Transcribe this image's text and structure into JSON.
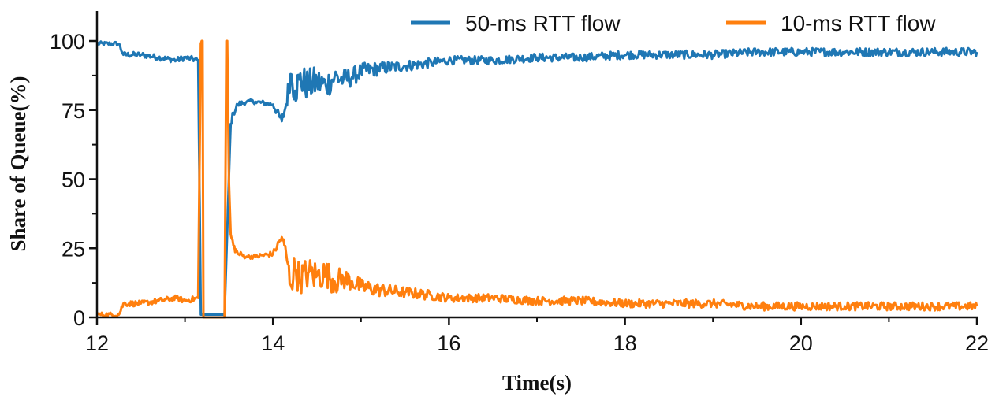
{
  "chart_data": {
    "type": "line",
    "title": "",
    "xlabel": "Time(s)",
    "ylabel": "Share of Queue(%)",
    "xlim": [
      12,
      22
    ],
    "ylim": [
      0,
      110
    ],
    "xticks": [
      12,
      14,
      16,
      18,
      20,
      22
    ],
    "xtick_labels": [
      "12",
      "14",
      "16",
      "18",
      "20",
      "22"
    ],
    "yticks": [
      0,
      25,
      50,
      75,
      100
    ],
    "ytick_labels": [
      "0",
      "25",
      "50",
      "75",
      "100"
    ],
    "grid": false,
    "legend_position": "top-right",
    "series": [
      {
        "name": "50-ms RTT flow",
        "color": "#1f77b4",
        "x": [
          12.0,
          12.25,
          12.3,
          12.5,
          12.7,
          12.9,
          13.0,
          13.15,
          13.18,
          13.22,
          13.3,
          13.45,
          13.5,
          13.52,
          13.55,
          13.6,
          13.7,
          13.8,
          14.0,
          14.1,
          14.15,
          14.2,
          14.25,
          14.3,
          14.4,
          14.5,
          14.6,
          14.7,
          14.8,
          14.9,
          15.0,
          15.2,
          15.5,
          15.8,
          16.0,
          16.5,
          17.0,
          17.5,
          18.0,
          18.5,
          19.0,
          19.5,
          20.0,
          20.5,
          21.0,
          21.5,
          22.0
        ],
        "y": [
          99,
          99,
          95,
          95,
          94,
          93,
          94,
          93,
          1,
          1,
          1,
          1,
          51,
          70,
          74,
          77,
          78,
          78,
          77,
          71,
          77,
          88,
          82,
          86,
          84,
          85,
          84,
          87,
          86,
          87,
          89,
          90,
          91,
          92,
          93,
          93,
          94,
          94,
          95,
          95,
          95,
          96,
          96,
          96,
          96,
          96,
          96
        ],
        "noise": [
          0.8,
          0.8,
          1.0,
          1.0,
          1.0,
          1.0,
          1.0,
          1.0,
          0,
          0,
          0,
          0,
          1.0,
          1.5,
          1.5,
          1.2,
          0.8,
          0.8,
          1.0,
          2.0,
          3.0,
          5.0,
          6.0,
          6.0,
          6.0,
          6.0,
          5.0,
          5.0,
          4.0,
          3.5,
          3.0,
          2.5,
          2.0,
          1.8,
          1.5,
          1.5,
          1.5,
          1.5,
          1.5,
          1.5,
          1.5,
          1.5,
          1.5,
          1.5,
          1.5,
          1.5,
          1.5
        ]
      },
      {
        "name": "10-ms RTT flow",
        "color": "#ff7f0e",
        "x": [
          12.0,
          12.25,
          12.3,
          12.5,
          12.7,
          12.9,
          13.0,
          13.15,
          13.18,
          13.19,
          13.2,
          13.21,
          13.22,
          13.45,
          13.47,
          13.48,
          13.5,
          13.52,
          13.55,
          13.6,
          13.7,
          13.8,
          14.0,
          14.1,
          14.15,
          14.2,
          14.25,
          14.3,
          14.4,
          14.5,
          14.6,
          14.7,
          14.8,
          14.9,
          15.0,
          15.2,
          15.5,
          15.8,
          16.0,
          16.5,
          17.0,
          17.5,
          18.0,
          18.5,
          19.0,
          19.5,
          20.0,
          20.5,
          21.0,
          21.5,
          22.0
        ],
        "y": [
          1,
          1,
          5,
          5,
          6,
          7,
          6,
          7,
          99,
          100,
          100,
          0,
          0,
          0,
          100,
          100,
          49,
          30,
          26,
          23,
          22,
          22,
          23,
          29,
          23,
          12,
          18,
          14,
          16,
          15,
          16,
          13,
          14,
          13,
          11,
          10,
          9,
          8,
          7,
          7,
          6,
          6,
          5,
          5,
          5,
          4,
          4,
          4,
          4,
          4,
          4
        ],
        "noise": [
          0.8,
          0.8,
          1.0,
          1.0,
          1.0,
          1.0,
          1.0,
          1.0,
          0,
          0,
          0,
          0,
          0,
          0,
          0,
          0,
          0,
          1.5,
          1.5,
          1.2,
          0.8,
          0.8,
          1.0,
          2.0,
          3.0,
          5.0,
          6.0,
          6.0,
          6.0,
          6.0,
          5.0,
          5.0,
          4.0,
          3.5,
          3.0,
          2.5,
          2.0,
          1.8,
          1.5,
          1.5,
          1.5,
          1.5,
          1.5,
          1.5,
          1.5,
          1.5,
          1.5,
          1.5,
          1.5,
          1.5,
          1.5
        ]
      }
    ]
  }
}
